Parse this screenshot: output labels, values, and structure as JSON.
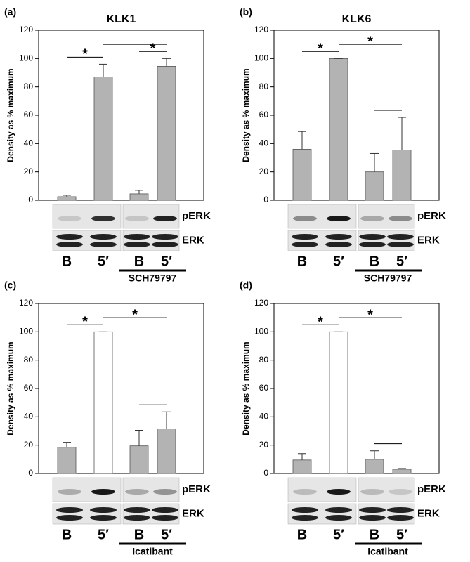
{
  "chart_data": [
    {
      "type": "bar",
      "panel_label": "(a)",
      "title": "KLK1",
      "y_label": "Density as % maximum",
      "ylim": [
        0,
        120
      ],
      "yticks": [
        0,
        20,
        40,
        60,
        80,
        100,
        120
      ],
      "categories": [
        "B",
        "5′",
        "B",
        "5′"
      ],
      "values": [
        2.5,
        87,
        4.5,
        94.5
      ],
      "errors": [
        1,
        9,
        2.5,
        5.5
      ],
      "colors": [
        "#b3b3b3",
        "#b3b3b3",
        "#b3b3b3",
        "#b3b3b3"
      ],
      "comparisons": [
        {
          "bars": [
            0,
            1
          ],
          "label": "*"
        },
        {
          "bars": [
            2,
            3
          ],
          "label": "*"
        },
        {
          "bars": [
            1,
            3
          ]
        }
      ],
      "blot_labels": [
        "pERK",
        "ERK"
      ],
      "group_label": "SCH79797"
    },
    {
      "type": "bar",
      "panel_label": "(b)",
      "title": "KLK6",
      "y_label": "Density as % maximum",
      "ylim": [
        0,
        120
      ],
      "yticks": [
        0,
        20,
        40,
        60,
        80,
        100,
        120
      ],
      "categories": [
        "B",
        "5′",
        "B",
        "5′"
      ],
      "values": [
        36,
        100,
        20,
        35.5
      ],
      "errors": [
        12.5,
        0,
        13,
        23
      ],
      "colors": [
        "#b3b3b3",
        "#b3b3b3",
        "#b3b3b3",
        "#b3b3b3"
      ],
      "comparisons": [
        {
          "bars": [
            0,
            1
          ],
          "label": "*"
        },
        {
          "bars": [
            2,
            3
          ]
        },
        {
          "bars": [
            1,
            3
          ],
          "label": "*"
        }
      ],
      "blot_labels": [
        "pERK",
        "ERK"
      ],
      "group_label": "SCH79797"
    },
    {
      "type": "bar",
      "panel_label": "(c)",
      "y_label": "Density as % maximum",
      "ylim": [
        0,
        120
      ],
      "yticks": [
        0,
        20,
        40,
        60,
        80,
        100,
        120
      ],
      "categories": [
        "B",
        "5′",
        "B",
        "5′"
      ],
      "values": [
        18.5,
        100,
        19.5,
        31.5
      ],
      "errors": [
        3.5,
        0,
        11,
        12
      ],
      "colors": [
        "#b3b3b3",
        "#ffffff",
        "#b3b3b3",
        "#b3b3b3"
      ],
      "comparisons": [
        {
          "bars": [
            0,
            1
          ],
          "label": "*"
        },
        {
          "bars": [
            2,
            3
          ]
        },
        {
          "bars": [
            1,
            3
          ],
          "label": "*"
        }
      ],
      "blot_labels": [
        "pERK",
        "ERK"
      ],
      "group_label": "Icatibant"
    },
    {
      "type": "bar",
      "panel_label": "(d)",
      "y_label": "Density as % maximum",
      "ylim": [
        0,
        120
      ],
      "yticks": [
        0,
        20,
        40,
        60,
        80,
        100,
        120
      ],
      "categories": [
        "B",
        "5′",
        "B",
        "5′"
      ],
      "values": [
        9.5,
        100,
        10,
        3
      ],
      "errors": [
        4.5,
        0,
        6,
        0.5
      ],
      "colors": [
        "#b3b3b3",
        "#ffffff",
        "#b3b3b3",
        "#b3b3b3"
      ],
      "comparisons": [
        {
          "bars": [
            0,
            1
          ],
          "label": "*"
        },
        {
          "bars": [
            2,
            3
          ]
        },
        {
          "bars": [
            1,
            3
          ],
          "label": "*"
        }
      ],
      "blot_labels": [
        "pERK",
        "ERK"
      ],
      "group_label": "Icatibant"
    }
  ]
}
